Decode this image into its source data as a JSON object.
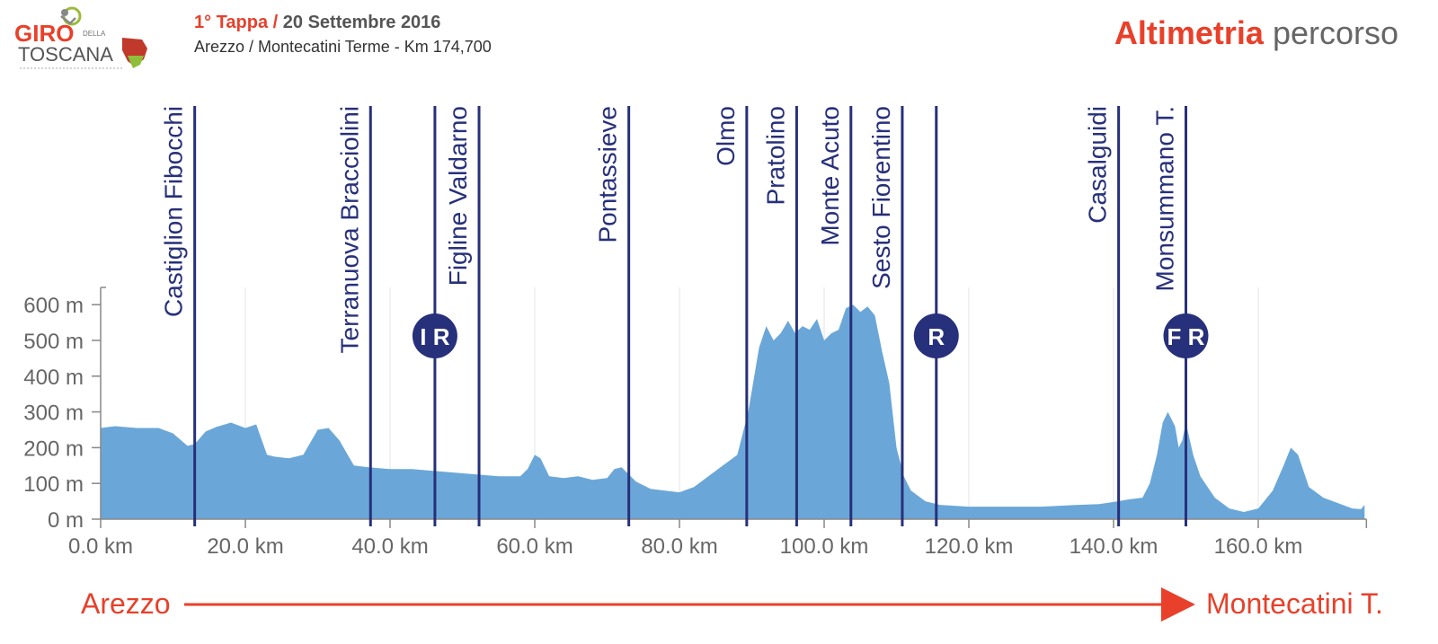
{
  "header": {
    "stage_label": "1° Tappa /",
    "date": "20 Settembre 2016",
    "route": "Arezzo / Montecatini Terme - Km 174,700",
    "title_bold": "Altimetria",
    "title_light": "percorso"
  },
  "logo": {
    "text_top": "GIRO",
    "text_della": "DELLA",
    "text_bottom": "TOSCANA",
    "icon": "cyclist-logo-icon"
  },
  "colors": {
    "accent_red": "#e8402a",
    "profile_fill": "#6aa7d8",
    "marker_blue": "#27307a",
    "axis_gray": "#666666"
  },
  "route_arrow": {
    "start": "Arezzo",
    "end": "Montecatini T."
  },
  "chart_data": {
    "type": "area",
    "title": "Altimetria percorso",
    "xlabel": "",
    "ylabel": "",
    "xlim": [
      0,
      174.7
    ],
    "ylim": [
      0,
      650
    ],
    "x_ticks": [
      "0.0 km",
      "20.0 km",
      "40.0 km",
      "60.0 km",
      "80.0 km",
      "100.0 km",
      "120.0 km",
      "140.0 km",
      "160.0 km"
    ],
    "x_tick_values": [
      0,
      20,
      40,
      60,
      80,
      100,
      120,
      140,
      160
    ],
    "y_ticks": [
      "0 m",
      "100 m",
      "200 m",
      "300 m",
      "400 m",
      "500 m",
      "600 m"
    ],
    "y_tick_values": [
      0,
      100,
      200,
      300,
      400,
      500,
      600
    ],
    "grid": true,
    "series": [
      {
        "x": [
          0,
          2,
          5,
          8,
          10,
          12,
          13,
          14.5,
          16,
          18,
          20,
          21.5,
          23,
          24,
          26,
          28,
          30,
          31.5,
          33,
          35,
          37,
          40,
          43,
          46,
          49,
          52,
          55,
          58,
          59,
          60,
          60.8,
          62,
          64,
          66,
          68,
          70,
          71,
          72,
          73,
          74,
          75,
          76,
          78,
          80,
          82,
          84,
          86,
          88,
          89.5,
          91,
          92,
          93,
          94,
          95,
          96,
          97,
          98,
          99,
          100,
          101,
          102,
          103,
          104,
          105,
          106,
          107,
          108,
          109,
          110,
          111,
          112,
          114,
          116,
          120,
          125,
          130,
          135,
          138,
          140,
          142,
          144,
          145,
          146,
          146.8,
          147.5,
          148.5,
          149,
          149.5,
          150,
          151,
          152,
          154,
          156,
          158,
          160,
          162,
          163.5,
          164.5,
          165.5,
          167,
          169,
          171,
          173,
          174.2,
          174.7
        ],
        "y": [
          255,
          260,
          255,
          255,
          240,
          205,
          210,
          245,
          258,
          270,
          255,
          265,
          180,
          175,
          170,
          180,
          250,
          255,
          220,
          150,
          145,
          140,
          140,
          135,
          130,
          125,
          120,
          120,
          140,
          180,
          170,
          120,
          115,
          120,
          110,
          115,
          140,
          145,
          125,
          105,
          95,
          85,
          80,
          75,
          90,
          120,
          150,
          180,
          300,
          480,
          540,
          500,
          520,
          555,
          520,
          540,
          530,
          560,
          500,
          520,
          530,
          590,
          600,
          580,
          595,
          570,
          470,
          380,
          200,
          120,
          80,
          50,
          40,
          35,
          35,
          35,
          40,
          42,
          48,
          55,
          60,
          100,
          180,
          270,
          300,
          260,
          200,
          220,
          270,
          180,
          120,
          60,
          30,
          20,
          30,
          80,
          150,
          200,
          180,
          90,
          60,
          45,
          30,
          28,
          40
        ]
      }
    ],
    "markers": [
      {
        "label": "Castiglion Fibocchi",
        "km": 13.0
      },
      {
        "label": "Terranuova Bracciolini",
        "km": 37.3
      },
      {
        "label": "Figline Valdarno",
        "km": 52.3
      },
      {
        "label": "Pontassieve",
        "km": 73.0
      },
      {
        "label": "Olmo",
        "km": 89.3
      },
      {
        "label": "Pratolino",
        "km": 96.2
      },
      {
        "label": "Monte  Acuto",
        "km": 103.7
      },
      {
        "label": "Sesto Fiorentino",
        "km": 110.8
      },
      {
        "label": "Casalguidi",
        "km": 140.7
      },
      {
        "label": "Monsummano T.",
        "km": 150.0
      }
    ],
    "badges": [
      {
        "label": "I R",
        "km": 46.2
      },
      {
        "label": "R",
        "km": 115.5
      },
      {
        "label": "F R",
        "km": 150.0
      }
    ]
  }
}
